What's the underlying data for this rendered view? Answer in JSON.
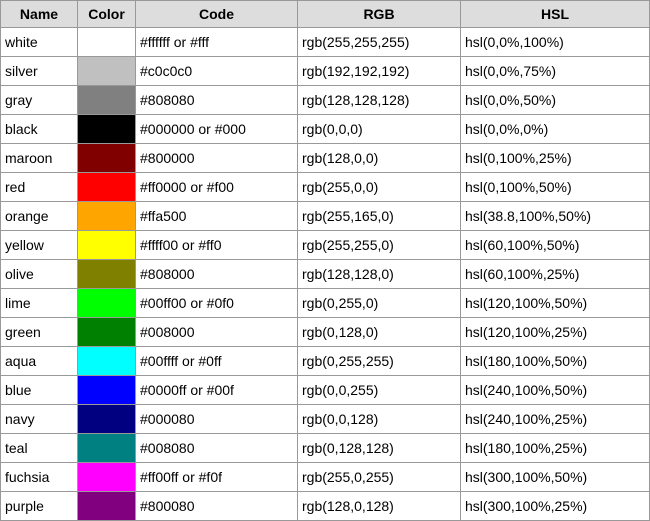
{
  "headers": {
    "name": "Name",
    "color": "Color",
    "code": "Code",
    "rgb": "RGB",
    "hsl": "HSL"
  },
  "rows": [
    {
      "name": "white",
      "swatch": "#ffffff",
      "code": "#ffffff or #fff",
      "rgb": "rgb(255,255,255)",
      "hsl": "hsl(0,0%,100%)"
    },
    {
      "name": "silver",
      "swatch": "#c0c0c0",
      "code": "#c0c0c0",
      "rgb": "rgb(192,192,192)",
      "hsl": "hsl(0,0%,75%)"
    },
    {
      "name": "gray",
      "swatch": "#808080",
      "code": "#808080",
      "rgb": "rgb(128,128,128)",
      "hsl": "hsl(0,0%,50%)"
    },
    {
      "name": "black",
      "swatch": "#000000",
      "code": "#000000 or #000",
      "rgb": "rgb(0,0,0)",
      "hsl": "hsl(0,0%,0%)"
    },
    {
      "name": "maroon",
      "swatch": "#800000",
      "code": "#800000",
      "rgb": "rgb(128,0,0)",
      "hsl": "hsl(0,100%,25%)"
    },
    {
      "name": "red",
      "swatch": "#ff0000",
      "code": "#ff0000 or #f00",
      "rgb": "rgb(255,0,0)",
      "hsl": "hsl(0,100%,50%)"
    },
    {
      "name": "orange",
      "swatch": "#ffa500",
      "code": "#ffa500",
      "rgb": "rgb(255,165,0)",
      "hsl": "hsl(38.8,100%,50%)"
    },
    {
      "name": "yellow",
      "swatch": "#ffff00",
      "code": "#ffff00 or #ff0",
      "rgb": "rgb(255,255,0)",
      "hsl": "hsl(60,100%,50%)"
    },
    {
      "name": "olive",
      "swatch": "#808000",
      "code": "#808000",
      "rgb": "rgb(128,128,0)",
      "hsl": "hsl(60,100%,25%)"
    },
    {
      "name": "lime",
      "swatch": "#00ff00",
      "code": "#00ff00 or #0f0",
      "rgb": "rgb(0,255,0)",
      "hsl": "hsl(120,100%,50%)"
    },
    {
      "name": "green",
      "swatch": "#008000",
      "code": "#008000",
      "rgb": "rgb(0,128,0)",
      "hsl": "hsl(120,100%,25%)"
    },
    {
      "name": "aqua",
      "swatch": "#00ffff",
      "code": "#00ffff or #0ff",
      "rgb": "rgb(0,255,255)",
      "hsl": "hsl(180,100%,50%)"
    },
    {
      "name": "blue",
      "swatch": "#0000ff",
      "code": "#0000ff or #00f",
      "rgb": "rgb(0,0,255)",
      "hsl": "hsl(240,100%,50%)"
    },
    {
      "name": "navy",
      "swatch": "#000080",
      "code": "#000080",
      "rgb": "rgb(0,0,128)",
      "hsl": "hsl(240,100%,25%)"
    },
    {
      "name": "teal",
      "swatch": "#008080",
      "code": "#008080",
      "rgb": "rgb(0,128,128)",
      "hsl": "hsl(180,100%,25%)"
    },
    {
      "name": "fuchsia",
      "swatch": "#ff00ff",
      "code": "#ff00ff or #f0f",
      "rgb": "rgb(255,0,255)",
      "hsl": "hsl(300,100%,50%)"
    },
    {
      "name": "purple",
      "swatch": "#800080",
      "code": "#800080",
      "rgb": "rgb(128,0,128)",
      "hsl": "hsl(300,100%,25%)"
    }
  ]
}
